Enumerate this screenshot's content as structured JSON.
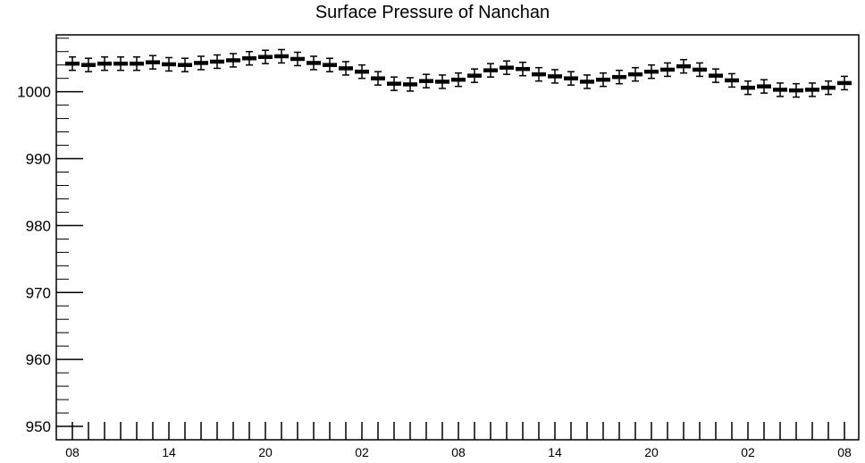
{
  "chart_data": {
    "type": "line",
    "title": "Surface Pressure of Nanchan",
    "xlabel": "",
    "ylabel": "",
    "ylim": [
      948,
      1008.5
    ],
    "yticks": [
      950,
      960,
      970,
      980,
      990,
      1000
    ],
    "x_tick_labels": [
      {
        "index": 0,
        "label": "08"
      },
      {
        "index": 6,
        "label": "14"
      },
      {
        "index": 12,
        "label": "20"
      },
      {
        "index": 18,
        "label": "02"
      },
      {
        "index": 24,
        "label": "08"
      },
      {
        "index": 30,
        "label": "14"
      },
      {
        "index": 36,
        "label": "20"
      },
      {
        "index": 42,
        "label": "02"
      },
      {
        "index": 48,
        "label": "08"
      }
    ],
    "error_half_width": 1.0,
    "grid": false,
    "series": [
      {
        "values": [
          1004.2,
          1004.0,
          1004.2,
          1004.2,
          1004.2,
          1004.4,
          1004.1,
          1004.0,
          1004.3,
          1004.5,
          1004.7,
          1005.0,
          1005.2,
          1005.3,
          1004.9,
          1004.3,
          1004.0,
          1003.5,
          1003.0,
          1002.0,
          1001.2,
          1001.1,
          1001.6,
          1001.5,
          1001.8,
          1002.4,
          1003.2,
          1003.6,
          1003.4,
          1002.6,
          1002.3,
          1002.0,
          1001.5,
          1001.8,
          1002.2,
          1002.6,
          1003.0,
          1003.3,
          1003.8,
          1003.3,
          1002.4,
          1001.7,
          1000.6,
          1000.8,
          1000.3,
          1000.2,
          1000.3,
          1000.6,
          1001.3
        ]
      }
    ]
  }
}
